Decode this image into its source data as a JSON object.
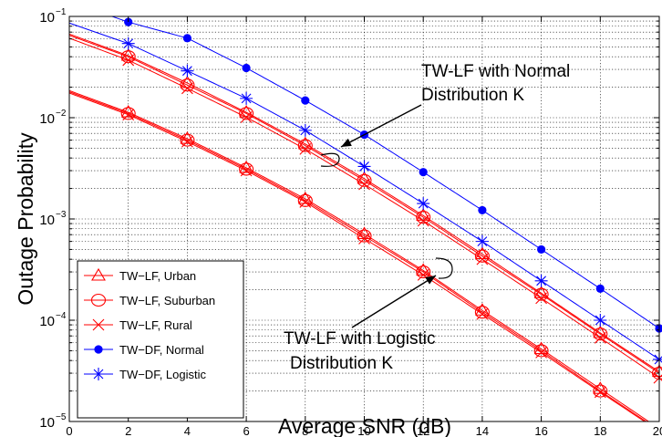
{
  "chart_data": {
    "type": "line",
    "xlabel": "Average SNR (dB)",
    "ylabel": "Outage Probability",
    "xlim": [
      0,
      20
    ],
    "ylim": [
      1e-05,
      0.1
    ],
    "yscale": "log",
    "grid": true,
    "minor_grid": true,
    "legend_position": "bottom-left",
    "x_ticks": [
      0,
      2,
      4,
      6,
      8,
      10,
      12,
      14,
      16,
      18,
      20
    ],
    "x_tick_labels": [
      "0",
      "2",
      "4",
      "6",
      "8",
      "10",
      "12",
      "14",
      "16",
      "18",
      "20"
    ],
    "y_ticks": [
      {
        "value": 0.1,
        "base": "10",
        "exp": "−1"
      },
      {
        "value": 0.01,
        "base": "10",
        "exp": "−2"
      },
      {
        "value": 0.001,
        "base": "10",
        "exp": "−3"
      },
      {
        "value": 0.0001,
        "base": "10",
        "exp": "−4"
      },
      {
        "value": 1e-05,
        "base": "10",
        "exp": "−5"
      }
    ],
    "marker_x": [
      2,
      4,
      6,
      8,
      10,
      12,
      14,
      16,
      18,
      20
    ],
    "series": [
      {
        "name": "TW−LF, Urban",
        "marker": "triangle",
        "color": "#ff0000",
        "x": [
          0,
          2,
          4,
          6,
          8,
          10,
          12,
          14,
          16,
          18,
          20
        ],
        "y": [
          0.0185,
          0.0113,
          0.0062,
          0.0032,
          0.00158,
          0.00071,
          0.00031,
          0.000125,
          5.2e-05,
          2.1e-05,
          8.5e-06
        ]
      },
      {
        "name": "TW−LF, Suburban",
        "marker": "circle-open",
        "color": "#ff0000",
        "x": [
          0,
          2,
          4,
          6,
          8,
          10,
          12,
          14,
          16,
          18,
          20
        ],
        "y": [
          0.018,
          0.011,
          0.006,
          0.0031,
          0.00152,
          0.00068,
          0.0003,
          0.00012,
          5e-05,
          2e-05,
          8.2e-06
        ]
      },
      {
        "name": "TW−LF, Rural",
        "marker": "x",
        "color": "#ff0000",
        "x": [
          0,
          2,
          4,
          6,
          8,
          10,
          12,
          14,
          16,
          18,
          20
        ],
        "y": [
          0.0175,
          0.0107,
          0.0058,
          0.003,
          0.00147,
          0.00064,
          0.00028,
          0.000115,
          4.8e-05,
          1.95e-05,
          8e-06
        ]
      },
      {
        "name": "TW−LF, Urban",
        "marker": "triangle",
        "color": "#ff0000",
        "x": [
          0,
          2,
          4,
          6,
          8,
          10,
          12,
          14,
          16,
          18,
          20
        ],
        "y": [
          0.067,
          0.041,
          0.022,
          0.0113,
          0.0055,
          0.0025,
          0.00108,
          0.00045,
          0.000185,
          7.5e-05,
          3.1e-05
        ]
      },
      {
        "name": "TW−LF, Suburban",
        "marker": "circle-open",
        "color": "#ff0000",
        "x": [
          0,
          2,
          4,
          6,
          8,
          10,
          12,
          14,
          16,
          18,
          20
        ],
        "y": [
          0.065,
          0.04,
          0.021,
          0.011,
          0.0053,
          0.0024,
          0.00104,
          0.00043,
          0.00018,
          7.3e-05,
          3e-05
        ]
      },
      {
        "name": "TW−LF, Rural",
        "marker": "x",
        "color": "#ff0000",
        "x": [
          0,
          2,
          4,
          6,
          8,
          10,
          12,
          14,
          16,
          18,
          20
        ],
        "y": [
          0.061,
          0.037,
          0.0195,
          0.0101,
          0.0049,
          0.0022,
          0.00096,
          0.0004,
          0.000165,
          6.7e-05,
          2.7e-05
        ]
      },
      {
        "name": "TW−DF, Normal",
        "marker": "dot",
        "color": "#0000ff",
        "x": [
          0,
          2,
          4,
          6,
          8,
          10,
          12,
          14,
          16,
          18,
          20
        ],
        "y": [
          0.14,
          0.088,
          0.061,
          0.031,
          0.0148,
          0.0068,
          0.0029,
          0.00122,
          0.0005,
          0.000205,
          8.3e-05
        ]
      },
      {
        "name": "TW−DF, Logistic",
        "marker": "star",
        "color": "#0000ff",
        "x": [
          0,
          2,
          4,
          6,
          8,
          10,
          12,
          14,
          16,
          18,
          20
        ],
        "y": [
          0.086,
          0.054,
          0.029,
          0.0155,
          0.0075,
          0.0033,
          0.00142,
          0.0006,
          0.000245,
          0.0001,
          4.1e-05
        ]
      }
    ],
    "legend": [
      {
        "label": "TW−LF, Urban",
        "marker": "triangle",
        "color": "#ff0000"
      },
      {
        "label": "TW−LF, Suburban",
        "marker": "circle-open",
        "color": "#ff0000"
      },
      {
        "label": "TW−LF, Rural",
        "marker": "x",
        "color": "#ff0000"
      },
      {
        "label": "TW−DF, Normal",
        "marker": "dot",
        "color": "#0000ff"
      },
      {
        "label": "TW−DF, Logistic",
        "marker": "star",
        "color": "#0000ff"
      }
    ],
    "annotations": [
      {
        "lines": [
          "TW-LF with Normal",
          "Distribution K"
        ]
      },
      {
        "lines": [
          "TW-LF with Logistic",
          "Distribution K"
        ]
      }
    ]
  }
}
